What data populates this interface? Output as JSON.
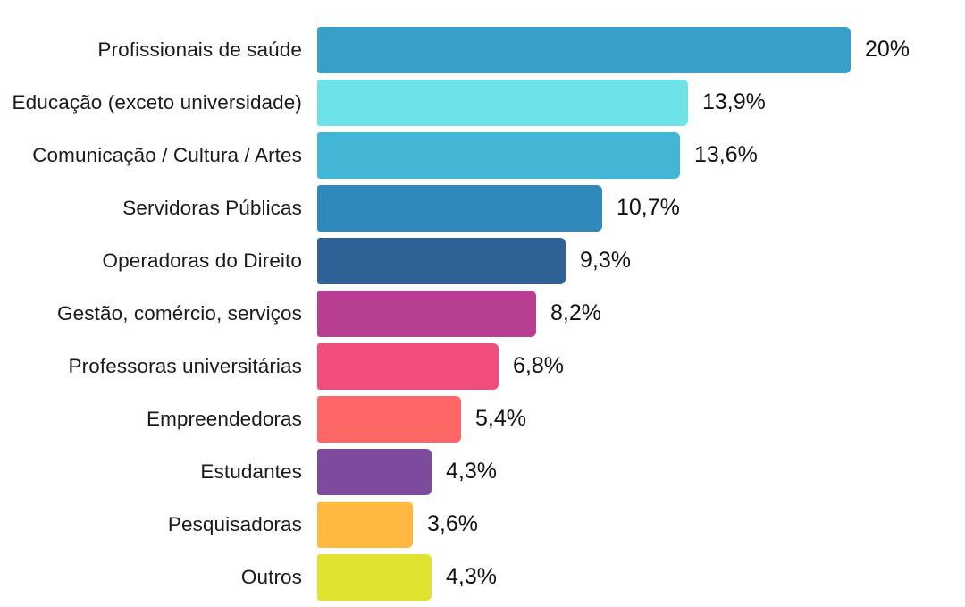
{
  "chart_data": {
    "type": "bar",
    "orientation": "horizontal",
    "title": "",
    "xlabel": "",
    "ylabel": "",
    "xlim": [
      0,
      20
    ],
    "grid": false,
    "legend": false,
    "background_color": "#ffffff",
    "text_color": "#1a1a1a",
    "categories": [
      "Profissionais de saúde",
      "Educação (exceto universidade)",
      "Comunicação / Cultura / Artes",
      "Servidoras Públicas",
      "Operadoras do Direito",
      "Gestão, comércio, serviços",
      "Professoras universitárias",
      "Empreendedoras",
      "Estudantes",
      "Pesquisadoras",
      "Outros"
    ],
    "values": [
      20,
      13.9,
      13.6,
      10.7,
      9.3,
      8.2,
      6.8,
      5.4,
      4.3,
      3.6,
      4.3
    ],
    "value_labels": [
      "20%",
      "13,9%",
      "13,6%",
      "10,7%",
      "9,3%",
      "8,2%",
      "6,8%",
      "5,4%",
      "4,3%",
      "3,6%",
      "4,3%"
    ],
    "bar_colors": [
      "#37A0C8",
      "#6DE2E8",
      "#43B5D5",
      "#2F8ABB",
      "#2F6096",
      "#B73E90",
      "#F04E7C",
      "#FF6666",
      "#7E4A9E",
      "#FFB840",
      "#DFE22F"
    ]
  }
}
